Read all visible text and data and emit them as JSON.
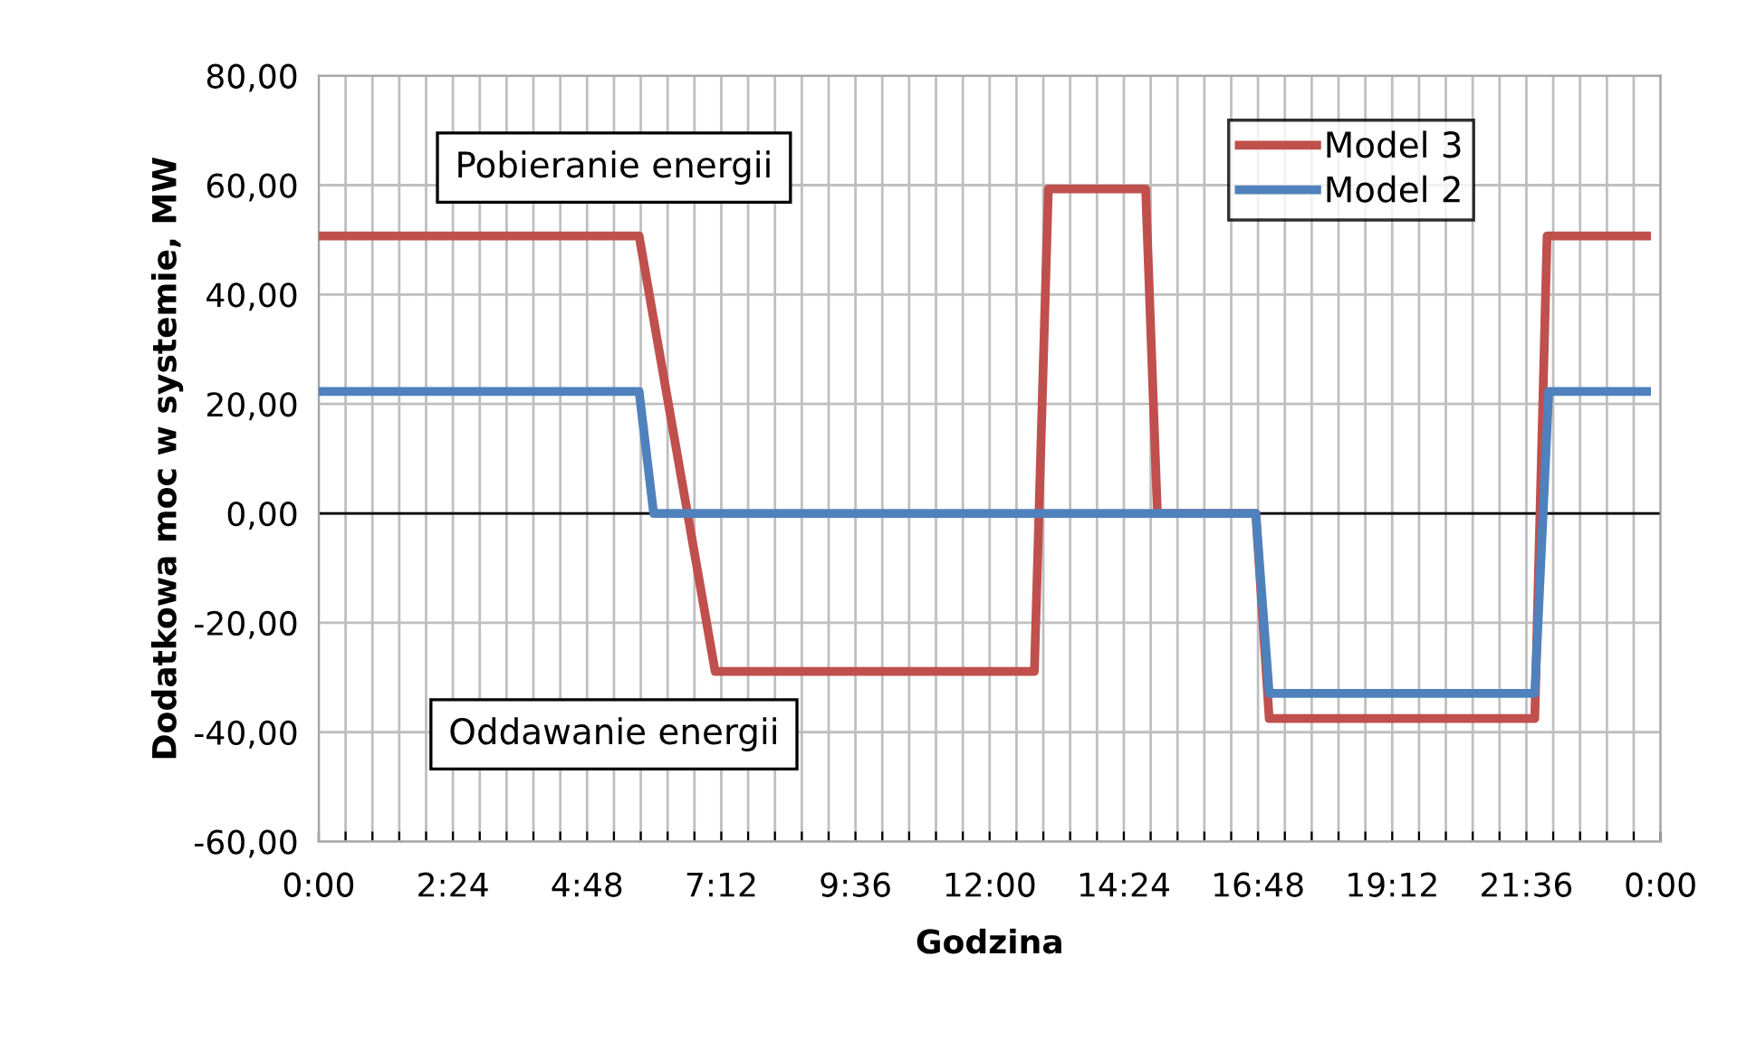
{
  "chart_data": {
    "type": "line",
    "xlabel": "Godzina",
    "ylabel": "Dodatkowa moc w systemie, MW",
    "series": [
      {
        "name": "Model 3",
        "color": "#c0504d",
        "x": [
          0,
          5.73,
          7.09,
          12.8,
          13.05,
          14.79,
          15.0,
          16.76,
          17.0,
          21.75,
          21.97,
          23.75
        ],
        "values": [
          50.7,
          50.7,
          -28.9,
          -28.9,
          59.3,
          59.3,
          0,
          0,
          -37.5,
          -37.5,
          50.7,
          50.7
        ]
      },
      {
        "name": "Model 2",
        "color": "#4f81bd",
        "x": [
          0,
          5.73,
          5.99,
          16.76,
          17.0,
          21.75,
          22.0,
          23.75
        ],
        "values": [
          22.3,
          22.3,
          0,
          0,
          -32.9,
          -32.9,
          22.3,
          22.3
        ]
      }
    ],
    "xlim": [
      0,
      24
    ],
    "ylim": [
      -60,
      80
    ],
    "xticks": [
      {
        "value": 0,
        "label": "0:00"
      },
      {
        "value": 0.48,
        "label": null
      },
      {
        "value": 0.96,
        "label": null
      },
      {
        "value": 1.44,
        "label": null
      },
      {
        "value": 1.92,
        "label": null
      },
      {
        "value": 2.4,
        "label": "2:24"
      },
      {
        "value": 2.88,
        "label": null
      },
      {
        "value": 3.36,
        "label": null
      },
      {
        "value": 3.84,
        "label": null
      },
      {
        "value": 4.32,
        "label": null
      },
      {
        "value": 4.8,
        "label": "4:48"
      },
      {
        "value": 5.28,
        "label": null
      },
      {
        "value": 5.76,
        "label": null
      },
      {
        "value": 6.24,
        "label": null
      },
      {
        "value": 6.72,
        "label": null
      },
      {
        "value": 7.2,
        "label": "7:12"
      },
      {
        "value": 7.68,
        "label": null
      },
      {
        "value": 8.16,
        "label": null
      },
      {
        "value": 8.64,
        "label": null
      },
      {
        "value": 9.12,
        "label": null
      },
      {
        "value": 9.6,
        "label": "9:36"
      },
      {
        "value": 10.08,
        "label": null
      },
      {
        "value": 10.56,
        "label": null
      },
      {
        "value": 11.04,
        "label": null
      },
      {
        "value": 11.52,
        "label": null
      },
      {
        "value": 12,
        "label": "12:00"
      },
      {
        "value": 12.48,
        "label": null
      },
      {
        "value": 12.96,
        "label": null
      },
      {
        "value": 13.44,
        "label": null
      },
      {
        "value": 13.92,
        "label": null
      },
      {
        "value": 14.4,
        "label": "14:24"
      },
      {
        "value": 14.88,
        "label": null
      },
      {
        "value": 15.36,
        "label": null
      },
      {
        "value": 15.84,
        "label": null
      },
      {
        "value": 16.32,
        "label": null
      },
      {
        "value": 16.8,
        "label": "16:48"
      },
      {
        "value": 17.28,
        "label": null
      },
      {
        "value": 17.76,
        "label": null
      },
      {
        "value": 18.24,
        "label": null
      },
      {
        "value": 18.72,
        "label": null
      },
      {
        "value": 19.2,
        "label": "19:12"
      },
      {
        "value": 19.68,
        "label": null
      },
      {
        "value": 20.16,
        "label": null
      },
      {
        "value": 20.64,
        "label": null
      },
      {
        "value": 21.12,
        "label": null
      },
      {
        "value": 21.6,
        "label": "21:36"
      },
      {
        "value": 22.08,
        "label": null
      },
      {
        "value": 22.56,
        "label": null
      },
      {
        "value": 23.04,
        "label": null
      },
      {
        "value": 23.52,
        "label": null
      },
      {
        "value": 24,
        "label": "0:00"
      }
    ],
    "yticks": [
      {
        "value": -60,
        "label": "-60,00"
      },
      {
        "value": -40,
        "label": "-40,00"
      },
      {
        "value": -20,
        "label": "-20,00"
      },
      {
        "value": 0,
        "label": "0,00"
      },
      {
        "value": 20,
        "label": "20,00"
      },
      {
        "value": 40,
        "label": "40,00"
      },
      {
        "value": 60,
        "label": "60,00"
      },
      {
        "value": 80,
        "label": "80,00"
      }
    ],
    "ref_lines": [
      {
        "axis": "y",
        "value": 0,
        "color": "#000000"
      }
    ],
    "annotations": [
      "Pobieranie energii",
      "Oddawanie energii"
    ],
    "grid": true,
    "legend": "top right",
    "marker": "none",
    "line_style": "solid"
  }
}
